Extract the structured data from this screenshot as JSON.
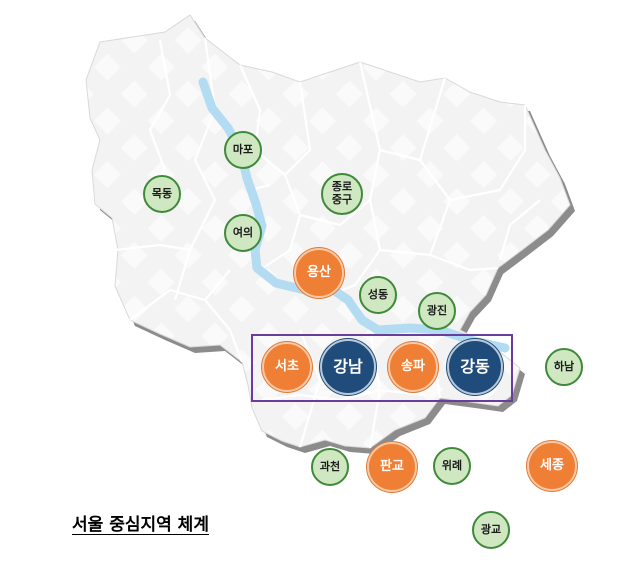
{
  "caption": "서울 중심지역 체계",
  "colors": {
    "map_fill": "#f2f2f2",
    "map_shadow": "#8c8c8c",
    "river": "#b3dcf2",
    "district_lines": "#ffffff",
    "green_fill": "#cfe8c2",
    "green_border": "#3f8a3a",
    "orange_fill": "#ef7f35",
    "navy_fill": "#1f4c7a",
    "highlight_border": "#6a3d9a"
  },
  "nodes": {
    "mapo": "마포",
    "mokdong": "목동",
    "jongno_junggu": "종로\n중구",
    "yeouido": "여의",
    "yongsan": "용산",
    "seongdong": "성동",
    "gwangjin": "광진",
    "hanam": "하남",
    "seocho": "서초",
    "gangnam": "강남",
    "songpa": "송파",
    "gangdong": "강동",
    "gwacheon": "과천",
    "pangyo": "판교",
    "wirye": "위례",
    "sejong": "세종",
    "gwanggyo": "광교"
  }
}
